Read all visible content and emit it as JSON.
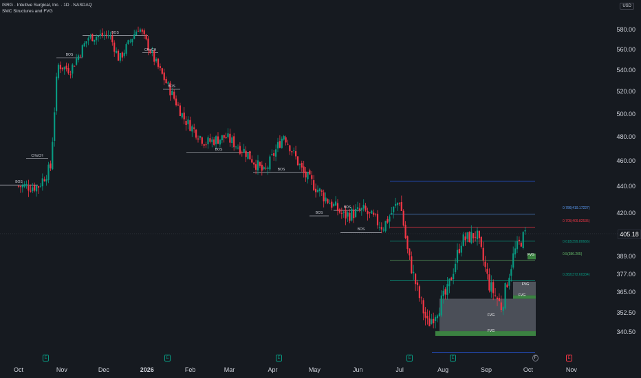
{
  "header": {
    "symbol_line": "ISRG · Intuitive Surgical, Inc. · 1D · NASDAQ",
    "indicator": "SMC Structures and FVG"
  },
  "currency_button": "USD",
  "last_price": "405.18",
  "colors": {
    "up": "#089981",
    "down": "#f23645",
    "bg": "#161a20",
    "fvg": "#4caf50",
    "blue": "#2962ff"
  },
  "fib_labels": [
    "0.786(419.17227)",
    "0.705(409.82535)",
    "0.618(399.80666)",
    "0.5(386.205)",
    "0.382(372.60334)"
  ],
  "structure_labels": [
    "BOS",
    "BOS",
    "CHoCH",
    "BOS",
    "CHoCH",
    "BOS",
    "BOS",
    "BOS",
    "BOS",
    "BOS",
    "BOS"
  ],
  "fvg_labels": [
    "FVG",
    "FVG",
    "FVG",
    "FVG",
    "FVG"
  ],
  "events": [
    "E",
    "E",
    "E",
    "E",
    "E",
    "F",
    "E"
  ],
  "chart_data": {
    "type": "candlestick",
    "title": "ISRG · Intuitive Surgical, Inc. · 1D · NASDAQ",
    "y_ticks": [
      "580.00",
      "560.00",
      "540.00",
      "520.00",
      "500.00",
      "480.00",
      "460.00",
      "440.00",
      "420.00",
      "405.18",
      "389.00",
      "377.00",
      "365.00",
      "352.50",
      "340.50"
    ],
    "x_ticks": [
      "Oct",
      "Nov",
      "Dec",
      "2026",
      "Feb",
      "Mar",
      "Apr",
      "May",
      "Jun",
      "Jul",
      "Aug",
      "Sep",
      "Oct",
      "Nov"
    ],
    "anchors_close": [
      [
        "2025-10-01",
        440
      ],
      [
        "2025-10-15",
        440
      ],
      [
        "2025-10-24",
        455
      ],
      [
        "2025-10-29",
        545
      ],
      [
        "2025-11-07",
        540
      ],
      [
        "2025-11-20",
        572
      ],
      [
        "2025-12-05",
        575
      ],
      [
        "2025-12-12",
        550
      ],
      [
        "2025-12-26",
        583
      ],
      [
        "2026-01-08",
        545
      ],
      [
        "2026-01-18",
        520
      ],
      [
        "2026-01-28",
        495
      ],
      [
        "2026-02-12",
        475
      ],
      [
        "2026-02-26",
        480
      ],
      [
        "2026-03-12",
        468
      ],
      [
        "2026-03-26",
        450
      ],
      [
        "2026-04-09",
        482
      ],
      [
        "2026-04-23",
        450
      ],
      [
        "2026-05-08",
        432
      ],
      [
        "2026-05-22",
        418
      ],
      [
        "2026-06-05",
        422
      ],
      [
        "2026-06-19",
        410
      ],
      [
        "2026-07-01",
        430
      ],
      [
        "2026-07-07",
        390
      ],
      [
        "2026-07-14",
        365
      ],
      [
        "2026-07-21",
        345
      ],
      [
        "2026-08-04",
        365
      ],
      [
        "2026-08-14",
        400
      ],
      [
        "2026-08-25",
        405
      ],
      [
        "2026-09-03",
        370
      ],
      [
        "2026-09-12",
        356
      ],
      [
        "2026-09-21",
        392
      ],
      [
        "2026-09-29",
        405.18
      ]
    ],
    "fib_levels": [
      419.17227,
      409.82535,
      399.80666,
      386.205,
      372.60334
    ],
    "swing_high": 444,
    "swing_low": 328
  }
}
